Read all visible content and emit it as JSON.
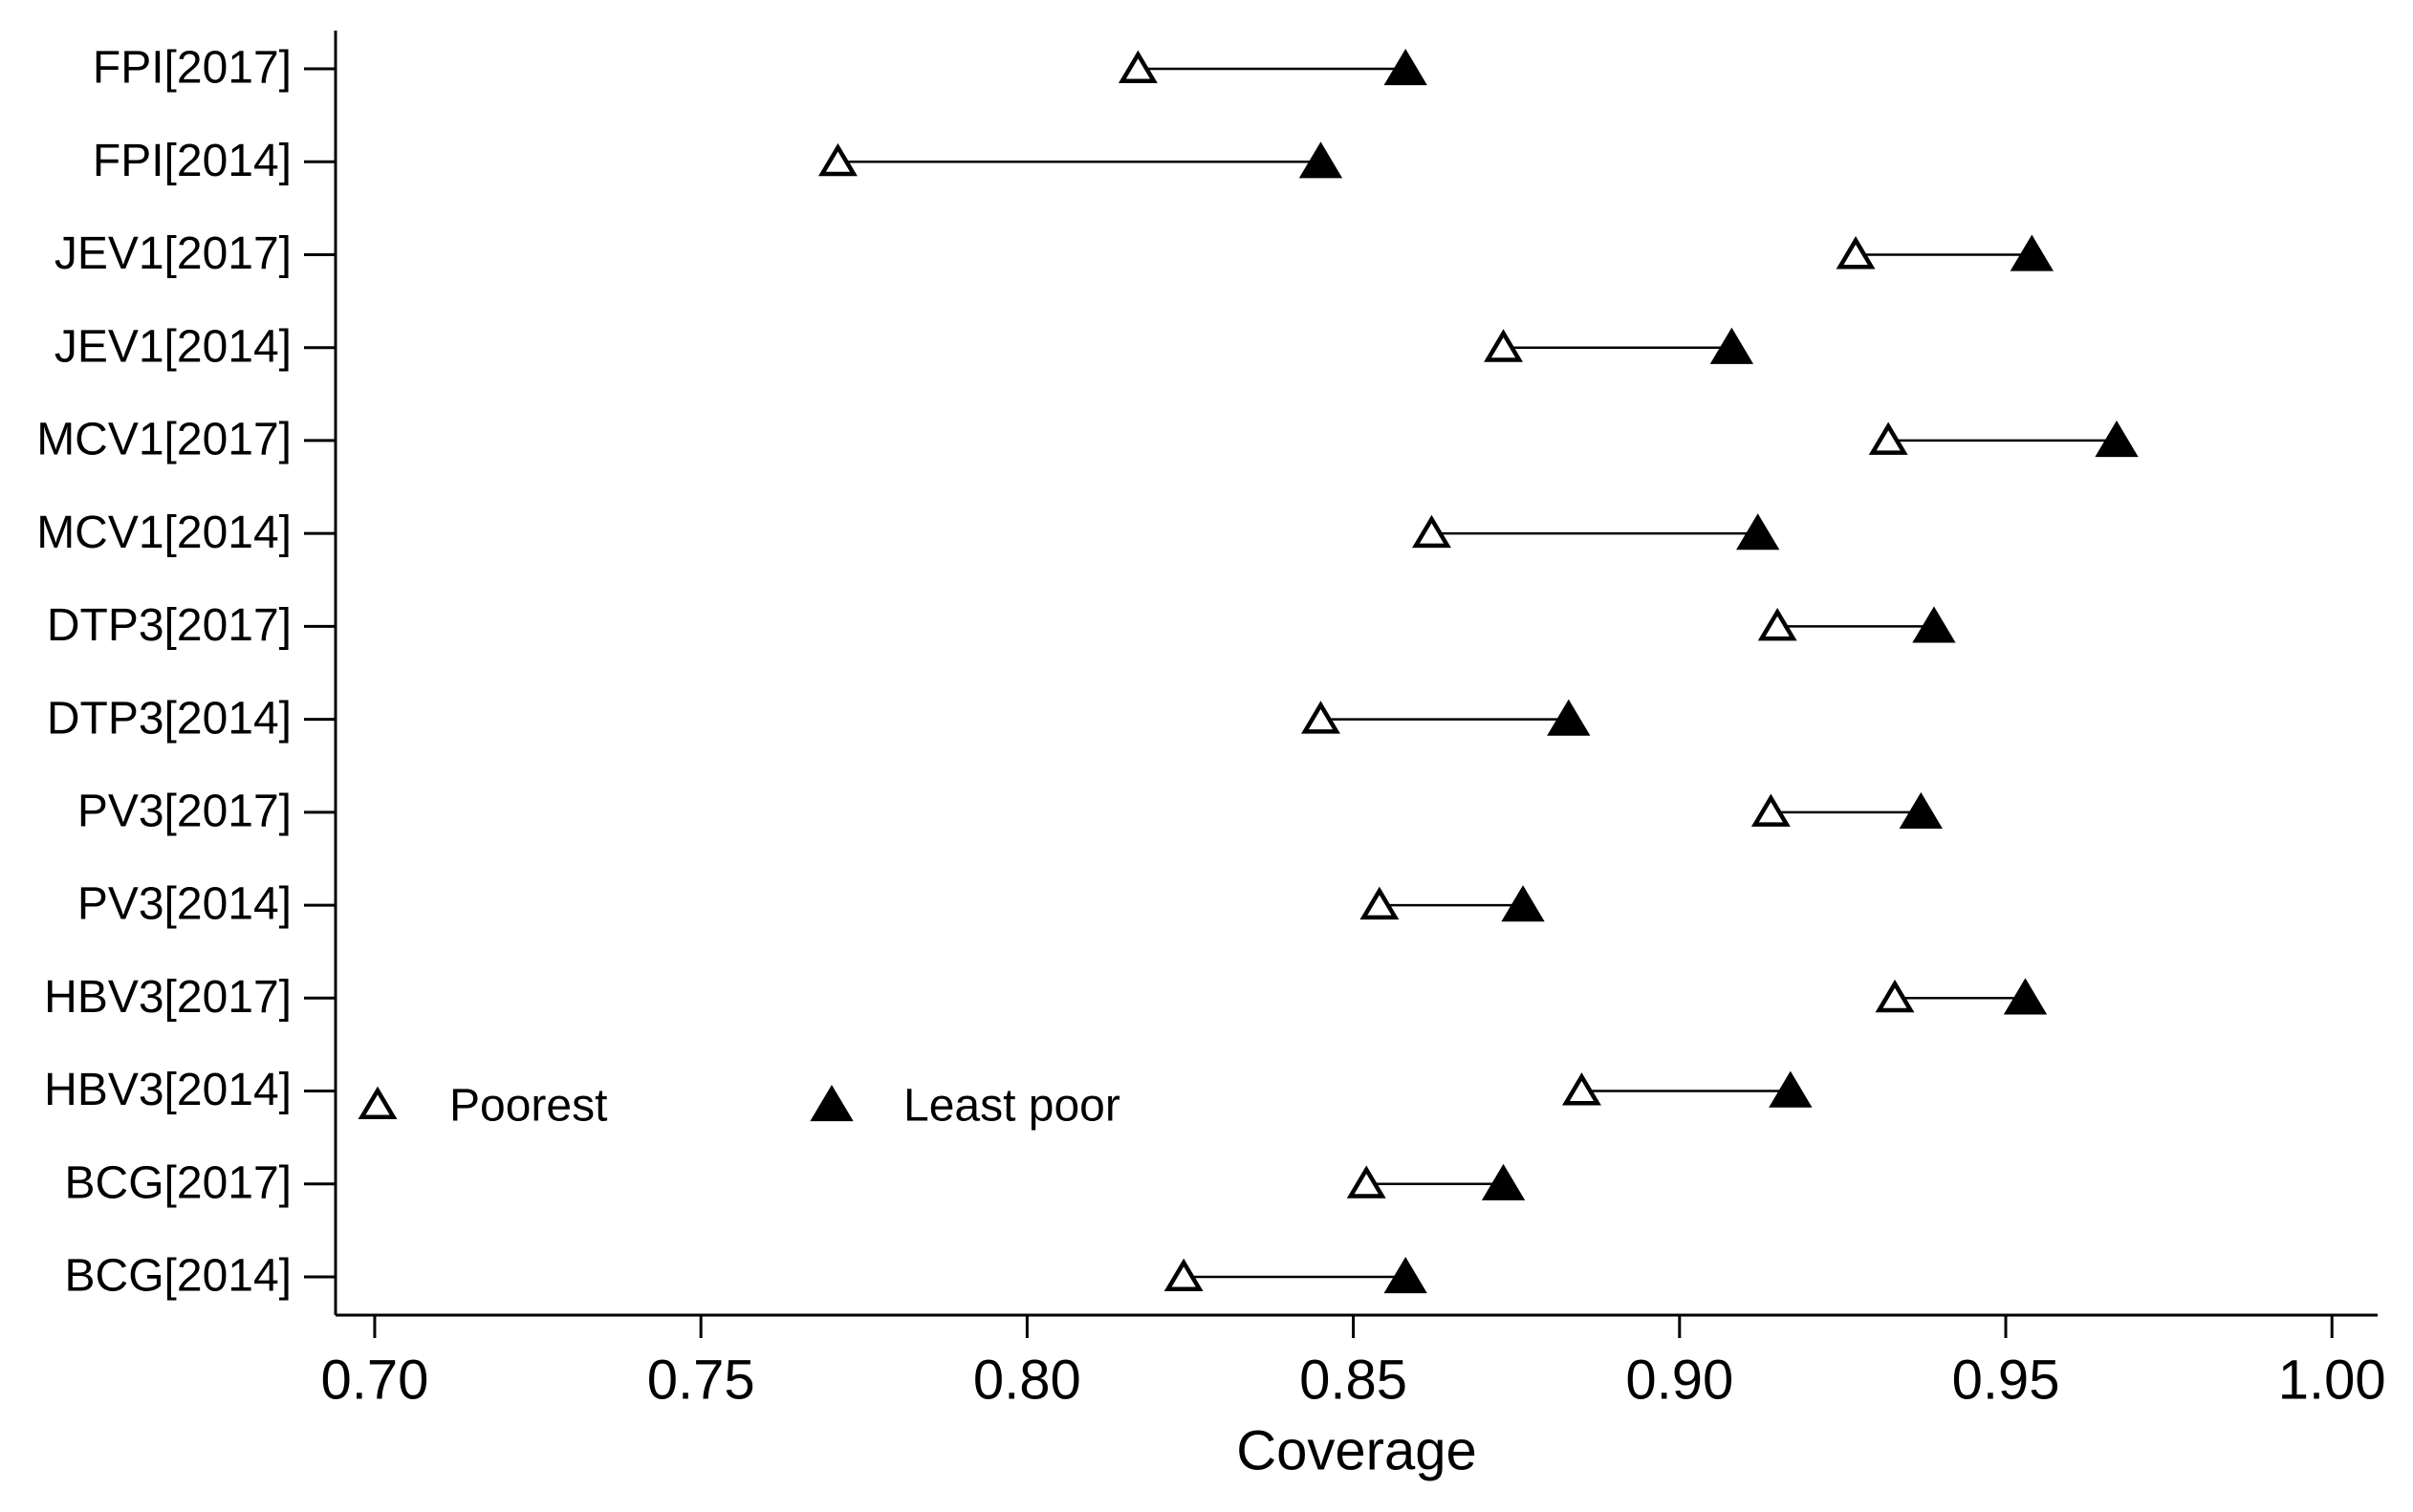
{
  "chart_data": {
    "type": "dumbbell",
    "xlabel": "Coverage",
    "categories": [
      "FPI[2017]",
      "FPI[2014]",
      "JEV1[2017]",
      "JEV1[2014]",
      "MCV1[2017]",
      "MCV1[2014]",
      "DTP3[2017]",
      "DTP3[2014]",
      "PV3[2017]",
      "PV3[2014]",
      "HBV3[2017]",
      "HBV3[2014]",
      "BCG[2017]",
      "BCG[2014]"
    ],
    "series": [
      {
        "name": "Poorest",
        "color": "#000000",
        "marker": "open-triangle",
        "values": [
          0.817,
          0.771,
          0.927,
          0.873,
          0.932,
          0.862,
          0.915,
          0.845,
          0.914,
          0.854,
          0.933,
          0.885,
          0.852,
          0.824
        ]
      },
      {
        "name": "Least poor",
        "color": "#000000",
        "marker": "filled-triangle",
        "values": [
          0.858,
          0.845,
          0.954,
          0.908,
          0.967,
          0.912,
          0.939,
          0.883,
          0.937,
          0.876,
          0.953,
          0.917,
          0.873,
          0.858
        ]
      }
    ],
    "xlim": [
      0.694,
      1.007
    ],
    "xticks": [
      {
        "value": 0.7,
        "label": "0.70"
      },
      0.75,
      {
        "value": 0.8,
        "label": "0.80"
      },
      0.85,
      {
        "value": 0.9,
        "label": "0.90"
      },
      0.95,
      {
        "value": 1,
        "label": "1.00"
      }
    ],
    "legend": "lower left",
    "grid": false
  }
}
